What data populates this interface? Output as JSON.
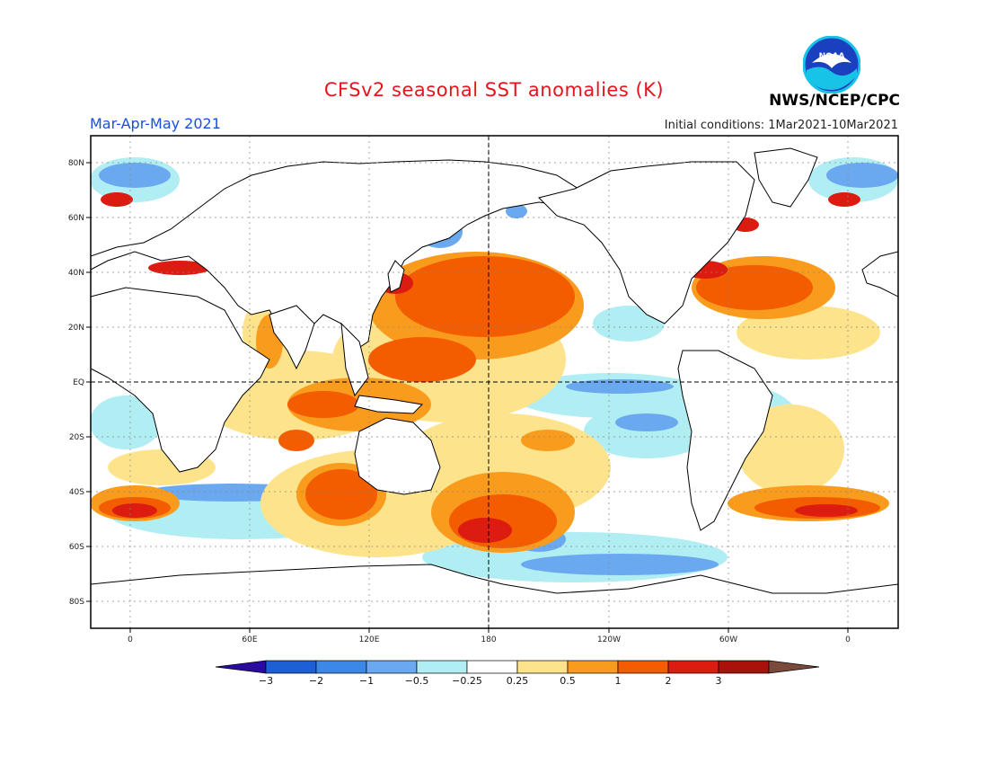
{
  "title": "CFSv2 seasonal SST anomalies (K)",
  "period": "Mar-Apr-May 2021",
  "initial_conditions": "Initial conditions: 1Mar2021-10Mar2021",
  "organization": "NWS/NCEP/CPC",
  "logo_text": "NOAA",
  "lat_ticks": [
    "80N",
    "60N",
    "40N",
    "20N",
    "EQ",
    "20S",
    "40S",
    "60S",
    "80S"
  ],
  "lon_ticks": [
    "0",
    "60E",
    "120E",
    "180",
    "120W",
    "60W",
    "0"
  ],
  "colorbar": {
    "labels": [
      "-3",
      "-2",
      "-1",
      "-0.5",
      "-0.25",
      "0.25",
      "0.5",
      "1",
      "2",
      "3"
    ],
    "colors": [
      "#2a0aa0",
      "#1f5fd6",
      "#3d87e8",
      "#6aa9f0",
      "#b0eef4",
      "#ffffff",
      "#fde48c",
      "#f99b1c",
      "#f45c00",
      "#dc1c10",
      "#a8120a",
      "#7a4a3a"
    ]
  },
  "anomaly_colors": {
    "light_blue": "#b0eef4",
    "mid_blue": "#6aa9f0",
    "blue": "#3d87e8",
    "yellow": "#fde48c",
    "orange": "#f99b1c",
    "dark_orange": "#f45c00",
    "red": "#dc1c10"
  }
}
